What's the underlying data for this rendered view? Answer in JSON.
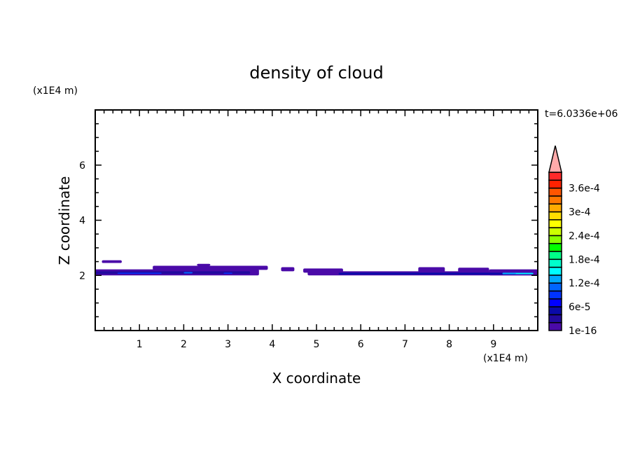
{
  "chart_data": {
    "type": "heatmap",
    "subtype": "filled-contour",
    "title": "density of cloud",
    "xlabel": "X coordinate",
    "ylabel": "Z coordinate",
    "x_unit": "(x1E4 m)",
    "y_unit": "(x1E4 m)",
    "time_label": "t=6.0336e+06",
    "xlim": [
      0,
      10
    ],
    "ylim": [
      0,
      8
    ],
    "xticks": [
      1,
      2,
      3,
      4,
      5,
      6,
      7,
      8,
      9
    ],
    "yticks": [
      2,
      4,
      6
    ],
    "x_minor_step": 0.2,
    "y_minor_step": 0.5,
    "grid": false,
    "colorbar": {
      "levels_start": 1e-16,
      "level_step": 2e-05,
      "tick_labels": [
        "1e-16",
        "6e-5",
        "1.2e-4",
        "1.8e-4",
        "2.4e-4",
        "3e-4",
        "3.6e-4"
      ],
      "tick_level_index": [
        0,
        3,
        6,
        9,
        12,
        15,
        18
      ],
      "colors": [
        "#4a0aa8",
        "#22099e",
        "#0a0aa8",
        "#0000ff",
        "#0033ff",
        "#0066ff",
        "#00aaff",
        "#00ffff",
        "#00ffcc",
        "#00ff88",
        "#00ff00",
        "#88ff00",
        "#ccff00",
        "#ffff00",
        "#ffdd00",
        "#ffaa00",
        "#ff7700",
        "#ff5500",
        "#ff2200",
        "#ff2a2a"
      ],
      "overflow_color": "#ffaaaa"
    },
    "regions": [
      {
        "x": [
          0.0,
          3.7
        ],
        "z": [
          2.0,
          2.22
        ],
        "level": 0
      },
      {
        "x": [
          4.8,
          10.0
        ],
        "z": [
          2.0,
          2.15
        ],
        "level": 0
      },
      {
        "x": [
          8.9,
          10.0
        ],
        "z": [
          2.0,
          2.22
        ],
        "level": 0
      },
      {
        "x": [
          0.0,
          3.5
        ],
        "z": [
          2.05,
          2.15
        ],
        "level": 1
      },
      {
        "x": [
          5.5,
          9.5
        ],
        "z": [
          2.03,
          2.1
        ],
        "level": 2
      },
      {
        "x": [
          0.5,
          1.5
        ],
        "z": [
          2.06,
          2.1
        ],
        "level": 4
      },
      {
        "x": [
          2.0,
          2.2
        ],
        "z": [
          2.07,
          2.12
        ],
        "level": 5
      },
      {
        "x": [
          2.9,
          3.1
        ],
        "z": [
          2.06,
          2.1
        ],
        "level": 4
      },
      {
        "x": [
          9.2,
          9.9
        ],
        "z": [
          2.04,
          2.1
        ],
        "level": 6
      },
      {
        "x": [
          9.5,
          9.9
        ],
        "z": [
          2.05,
          2.08
        ],
        "level": 7
      },
      {
        "x": [
          0.15,
          0.6
        ],
        "z": [
          2.45,
          2.55
        ],
        "level": 0
      },
      {
        "x": [
          1.3,
          3.9
        ],
        "z": [
          2.2,
          2.35
        ],
        "level": 0
      },
      {
        "x": [
          2.3,
          2.6
        ],
        "z": [
          2.35,
          2.42
        ],
        "level": 0
      },
      {
        "x": [
          4.2,
          4.5
        ],
        "z": [
          2.15,
          2.3
        ],
        "level": 0
      },
      {
        "x": [
          4.7,
          5.6
        ],
        "z": [
          2.1,
          2.25
        ],
        "level": 0
      },
      {
        "x": [
          7.3,
          7.9
        ],
        "z": [
          2.12,
          2.3
        ],
        "level": 0
      },
      {
        "x": [
          8.2,
          8.9
        ],
        "z": [
          2.12,
          2.28
        ],
        "level": 0
      }
    ]
  }
}
